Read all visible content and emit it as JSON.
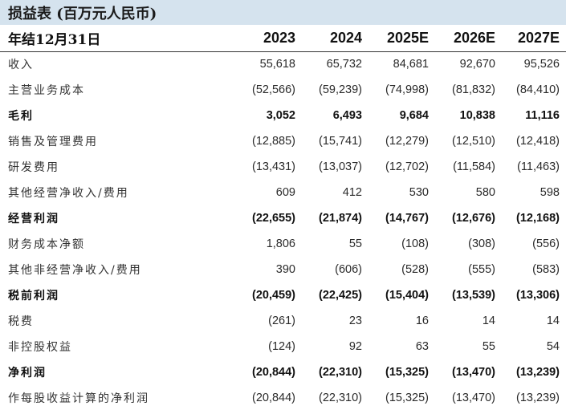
{
  "title": "损益表 (百万元人民币)",
  "header": {
    "label": "年结12月31日",
    "years": [
      "2023",
      "2024",
      "2025E",
      "2026E",
      "2027E"
    ]
  },
  "rows": [
    {
      "label": "收入",
      "bold": false,
      "values": [
        "55,618",
        "65,732",
        "84,681",
        "92,670",
        "95,526"
      ]
    },
    {
      "label": "主营业务成本",
      "bold": false,
      "values": [
        "(52,566)",
        "(59,239)",
        "(74,998)",
        "(81,832)",
        "(84,410)"
      ]
    },
    {
      "label": "毛利",
      "bold": true,
      "values": [
        "3,052",
        "6,493",
        "9,684",
        "10,838",
        "11,116"
      ]
    },
    {
      "label": "销售及管理费用",
      "bold": false,
      "values": [
        "(12,885)",
        "(15,741)",
        "(12,279)",
        "(12,510)",
        "(12,418)"
      ]
    },
    {
      "label": "研发费用",
      "bold": false,
      "values": [
        "(13,431)",
        "(13,037)",
        "(12,702)",
        "(11,584)",
        "(11,463)"
      ]
    },
    {
      "label": "其他经营净收入/费用",
      "bold": false,
      "values": [
        "609",
        "412",
        "530",
        "580",
        "598"
      ]
    },
    {
      "label": "经营利润",
      "bold": true,
      "values": [
        "(22,655)",
        "(21,874)",
        "(14,767)",
        "(12,676)",
        "(12,168)"
      ]
    },
    {
      "label": "财务成本净额",
      "bold": false,
      "values": [
        "1,806",
        "55",
        "(108)",
        "(308)",
        "(556)"
      ]
    },
    {
      "label": "其他非经营净收入/费用",
      "bold": false,
      "values": [
        "390",
        "(606)",
        "(528)",
        "(555)",
        "(583)"
      ]
    },
    {
      "label": "税前利润",
      "bold": true,
      "values": [
        "(20,459)",
        "(22,425)",
        "(15,404)",
        "(13,539)",
        "(13,306)"
      ]
    },
    {
      "label": "税费",
      "bold": false,
      "values": [
        "(261)",
        "23",
        "16",
        "14",
        "14"
      ]
    },
    {
      "label": "非控股权益",
      "bold": false,
      "values": [
        "(124)",
        "92",
        "63",
        "55",
        "54"
      ]
    },
    {
      "label": "净利润",
      "bold": true,
      "values": [
        "(20,844)",
        "(22,310)",
        "(15,325)",
        "(13,470)",
        "(13,239)"
      ]
    },
    {
      "label": "作每股收益计算的净利润",
      "bold": false,
      "values": [
        "(20,844)",
        "(22,310)",
        "(15,325)",
        "(13,470)",
        "(13,239)"
      ]
    }
  ]
}
